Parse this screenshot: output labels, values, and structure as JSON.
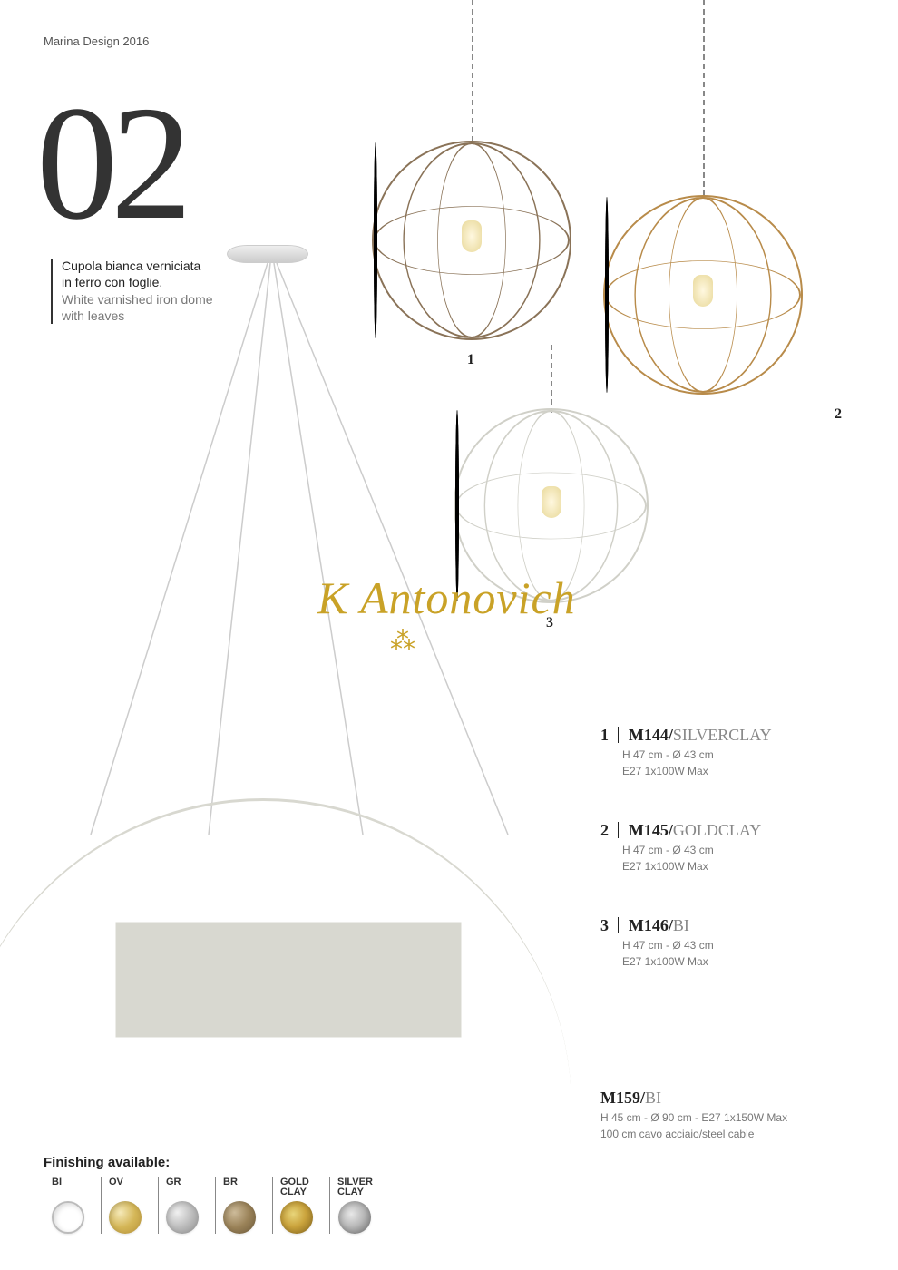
{
  "header": "Marina Design 2016",
  "page_number": "02",
  "description": {
    "italian": "Cupola bianca verniciata in ferro con foglie.",
    "english": "White varnished iron dome with leaves"
  },
  "watermark": "K Antonovich",
  "lamp_labels": {
    "l1": "1",
    "l2": "2",
    "l3": "3"
  },
  "products": [
    {
      "num": "1",
      "code_bold": "M144/",
      "code_light": "SILVERCLAY",
      "line1": "H 47 cm - Ø 43 cm",
      "line2": "E27 1x100W Max"
    },
    {
      "num": "2",
      "code_bold": "M145/",
      "code_light": "GOLDCLAY",
      "line1": "H 47 cm - Ø 43 cm",
      "line2": "E27 1x100W Max"
    },
    {
      "num": "3",
      "code_bold": "M146/",
      "code_light": "BI",
      "line1": "H 47 cm - Ø 43 cm",
      "line2": "E27 1x100W Max"
    }
  ],
  "product4": {
    "code_bold": "M159/",
    "code_light": "BI",
    "line1": "H 45 cm - Ø 90 cm - E27 1x150W Max",
    "line2": "100 cm cavo acciaio/steel cable"
  },
  "finishing": {
    "title": "Finishing available:",
    "swatches": [
      {
        "label": "BI",
        "color": "#ffffff",
        "border": "#bbb"
      },
      {
        "label": "OV",
        "color": "radial-gradient(circle at 35% 35%, #f5e9b8, #d4b657, #b8933a)"
      },
      {
        "label": "GR",
        "color": "radial-gradient(circle at 35% 35%, #f0f0f0, #bcbcbc, #8a8a8a)"
      },
      {
        "label": "BR",
        "color": "radial-gradient(circle at 35% 35%, #cdbb9a, #9a8258, #6d5a3a)"
      },
      {
        "label": "GOLD\nCLAY",
        "color": "radial-gradient(circle at 40% 40%, #e8d57a, #caa33c, #8a6b20 90%)"
      },
      {
        "label": "SILVER\nCLAY",
        "color": "radial-gradient(circle at 40% 40%, #e8e8e8, #b8b8b8, #707070 90%)"
      }
    ]
  },
  "lamp_colors": {
    "silverclay": "#8a7358",
    "goldclay": "#b88b4a",
    "white": "#d8d8d0"
  }
}
